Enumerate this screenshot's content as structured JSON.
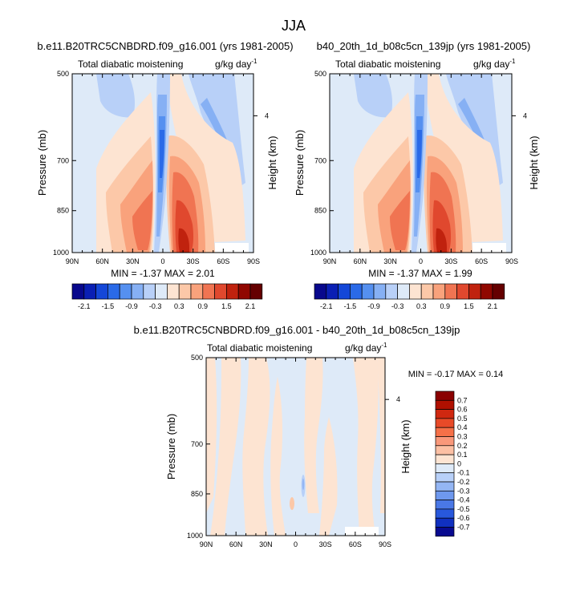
{
  "figure": {
    "title": "JJA"
  },
  "chart_data": [
    {
      "type": "heatmap",
      "title": "b.e11.B20TRC5CNBDRD.f09_g16.001 (yrs 1981-2005)",
      "subtitle_left": "Total diabatic moistening",
      "units": "g/kg day",
      "units_exp": "-1",
      "ylabel": "Pressure (mb)",
      "ylabel_right": "Height (km)",
      "x_ticks": [
        "90N",
        "60N",
        "30N",
        "0",
        "30S",
        "60S",
        "90S"
      ],
      "y_ticks": [
        "500",
        "700",
        "850",
        "1000"
      ],
      "y_ticks_right": [
        "4"
      ],
      "xlim": [
        90,
        -90
      ],
      "ylim": [
        1000,
        500
      ],
      "minmax": "MIN =  -1.37   MAX =   2.01",
      "levels": [
        -2.1,
        -1.8,
        -1.5,
        -1.2,
        -0.9,
        -0.6,
        -0.3,
        0,
        0.3,
        0.6,
        0.9,
        1.2,
        1.5,
        1.8,
        2.1
      ],
      "colorbar_labels": [
        "-2.1",
        "-1.5",
        "-0.9",
        "-0.3",
        "0.3",
        "0.9",
        "1.5",
        "2.1"
      ],
      "colors": [
        "#08088c",
        "#0a1fb4",
        "#1447d8",
        "#2a6ae8",
        "#5590f0",
        "#86b0f4",
        "#b8d0f8",
        "#deeaf8",
        "#fde4d2",
        "#fcc8a8",
        "#f9a27c",
        "#f07452",
        "#e0482e",
        "#c0220e",
        "#900700",
        "#650000"
      ]
    },
    {
      "type": "heatmap",
      "title": "b40_20th_1d_b08c5cn_139jp (yrs 1981-2005)",
      "subtitle_left": "Total diabatic moistening",
      "units": "g/kg day",
      "units_exp": "-1",
      "ylabel": "Pressure (mb)",
      "ylabel_right": "Height (km)",
      "x_ticks": [
        "90N",
        "60N",
        "30N",
        "0",
        "30S",
        "60S",
        "90S"
      ],
      "y_ticks": [
        "500",
        "700",
        "850",
        "1000"
      ],
      "y_ticks_right": [
        "4"
      ],
      "xlim": [
        90,
        -90
      ],
      "ylim": [
        1000,
        500
      ],
      "minmax": "MIN =  -1.37   MAX =   1.99",
      "levels": [
        -2.1,
        -1.8,
        -1.5,
        -1.2,
        -0.9,
        -0.6,
        -0.3,
        0,
        0.3,
        0.6,
        0.9,
        1.2,
        1.5,
        1.8,
        2.1
      ],
      "colorbar_labels": [
        "-2.1",
        "-1.5",
        "-0.9",
        "-0.3",
        "0.3",
        "0.9",
        "1.5",
        "2.1"
      ],
      "colors": [
        "#08088c",
        "#0a1fb4",
        "#1447d8",
        "#2a6ae8",
        "#5590f0",
        "#86b0f4",
        "#b8d0f8",
        "#deeaf8",
        "#fde4d2",
        "#fcc8a8",
        "#f9a27c",
        "#f07452",
        "#e0482e",
        "#c0220e",
        "#900700",
        "#650000"
      ]
    },
    {
      "type": "heatmap",
      "title": "b.e11.B20TRC5CNBDRD.f09_g16.001 - b40_20th_1d_b08c5cn_139jp",
      "subtitle_left": "Total diabatic moistening",
      "units": "g/kg day",
      "units_exp": "-1",
      "ylabel": "Pressure (mb)",
      "ylabel_right": "Height (km)",
      "x_ticks": [
        "90N",
        "60N",
        "30N",
        "0",
        "30S",
        "60S",
        "90S"
      ],
      "y_ticks": [
        "500",
        "700",
        "850",
        "1000"
      ],
      "y_ticks_right": [
        "4"
      ],
      "xlim": [
        90,
        -90
      ],
      "ylim": [
        1000,
        500
      ],
      "minmax": "MIN =  -0.17   MAX =   0.14",
      "colorbar_labels": [
        "0.7",
        "0.6",
        "0.5",
        "0.4",
        "0.3",
        "0.2",
        "0.1",
        "0",
        "-0.1",
        "-0.2",
        "-0.3",
        "-0.4",
        "-0.5",
        "-0.6",
        "-0.7"
      ],
      "colors_top_to_bottom": [
        "#8a0000",
        "#b01000",
        "#d02810",
        "#e84a28",
        "#f57048",
        "#f9987a",
        "#fcc0a4",
        "#fde4d2",
        "#deeaf8",
        "#b8d0f8",
        "#94b6f4",
        "#6e98ee",
        "#4a78e6",
        "#2858dc",
        "#1030c0",
        "#080a90"
      ]
    }
  ]
}
